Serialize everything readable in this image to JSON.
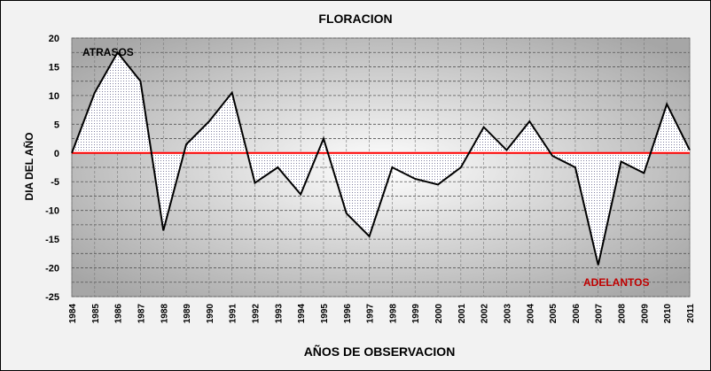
{
  "chart_data": {
    "type": "area",
    "title": "FLORACION",
    "xlabel": "AÑOS DE OBSERVACION",
    "ylabel": "DIA DEL AÑO",
    "ylim": [
      -25,
      20
    ],
    "yticks": [
      20,
      15,
      10,
      5,
      0,
      -5,
      -10,
      -15,
      -20,
      -25
    ],
    "grid": true,
    "reference_line": {
      "y": 0,
      "color": "#ff0000"
    },
    "annotations": {
      "top": "ATRASOS",
      "bottom": "ADELANTOS"
    },
    "categories": [
      "1984",
      "1985",
      "1986",
      "1987",
      "1988",
      "1989",
      "1990",
      "1991",
      "1992",
      "1993",
      "1994",
      "1995",
      "1996",
      "1997",
      "1998",
      "1999",
      "2000",
      "2001",
      "2002",
      "2003",
      "2004",
      "2005",
      "2006",
      "2007",
      "2008",
      "2009",
      "2010",
      "2011"
    ],
    "series": [
      {
        "values": [
          0,
          10.5,
          17.5,
          12.5,
          -13.5,
          1.5,
          5.5,
          10.5,
          -5.2,
          -2.5,
          -7.2,
          2.5,
          -10.5,
          -14.5,
          -2.5,
          -4.5,
          -5.5,
          -2.5,
          4.5,
          0.5,
          5.5,
          -0.5,
          -2.5,
          -19.5,
          -1.5,
          -3.5,
          8.5,
          0.5
        ]
      }
    ]
  }
}
